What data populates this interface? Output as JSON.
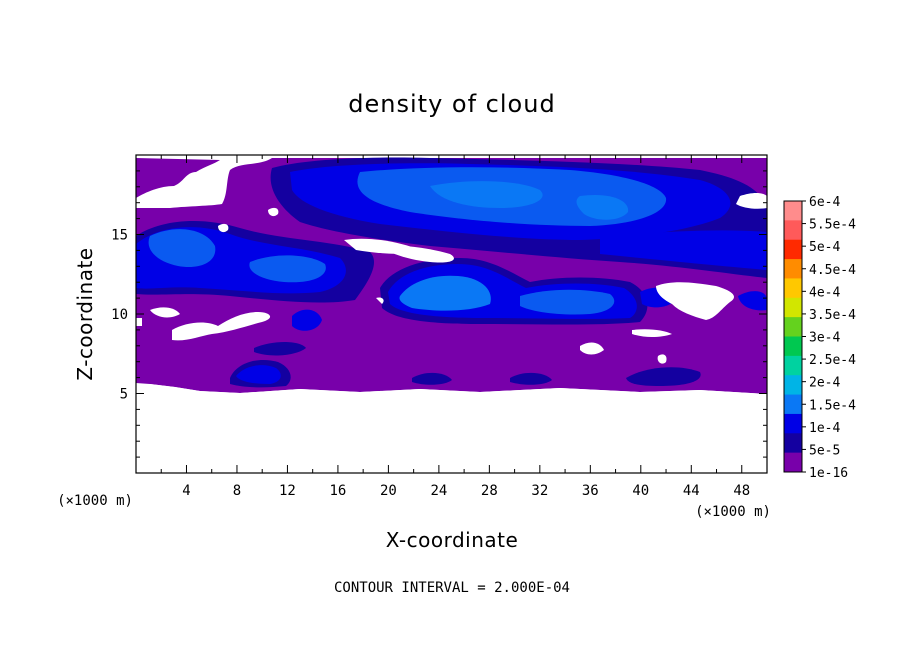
{
  "chart_data": {
    "type": "heatmap",
    "title": "density of cloud",
    "xlabel": "X-coordinate",
    "ylabel": "Z-coordinate",
    "x_unit": "(×1000 m)",
    "y_unit": "(×1000 m)",
    "xlim": [
      0,
      50
    ],
    "ylim": [
      0,
      20
    ],
    "x_ticks": [
      4,
      8,
      12,
      16,
      20,
      24,
      28,
      32,
      36,
      40,
      44,
      48
    ],
    "y_ticks": [
      5,
      10,
      15
    ],
    "annotation": "CONTOUR INTERVAL = 2.000E-04",
    "legend_placement": "right",
    "colorbar": {
      "labels": [
        "6e-4",
        "5.5e-4",
        "5e-4",
        "4.5e-4",
        "4e-4",
        "3.5e-4",
        "3e-4",
        "2.5e-4",
        "2e-4",
        "1.5e-4",
        "1e-4",
        "5e-5",
        "1e-16"
      ],
      "colors": [
        "#ff8c8c",
        "#ff5a5a",
        "#ff2a00",
        "#ff8c00",
        "#ffc800",
        "#d2e600",
        "#64d21e",
        "#00c850",
        "#00d2a0",
        "#00b4e6",
        "#0a78f5",
        "#0000e6",
        "#1400a0",
        "#7800aa"
      ]
    },
    "field_regions": [
      {
        "level": "1e-16",
        "desc": "cloud envelope",
        "x": [
          0,
          50
        ],
        "z": [
          5.3,
          19.6
        ]
      },
      {
        "level": "5e-5",
        "desc": "upper band",
        "x": [
          9,
          50
        ],
        "z": [
          12.3,
          19.4
        ]
      },
      {
        "level": "1e-4",
        "desc": "upper cloud core",
        "x": [
          22,
          42
        ],
        "z": [
          15.5,
          18.5
        ]
      },
      {
        "level": "5e-5",
        "desc": "left mid cloud",
        "x": [
          0,
          19
        ],
        "z": [
          11,
          16.2
        ]
      },
      {
        "level": "1e-4",
        "desc": "left mid core",
        "x": [
          2,
          7
        ],
        "z": [
          13.5,
          15.4
        ]
      },
      {
        "level": "5e-5",
        "desc": "central cloud",
        "x": [
          16,
          39
        ],
        "z": [
          9.7,
          13.5
        ]
      },
      {
        "level": "1e-4",
        "desc": "central core",
        "x": [
          21,
          26
        ],
        "z": [
          10.5,
          12.5
        ]
      },
      {
        "level": "1e-4",
        "desc": "central core 2",
        "x": [
          29,
          37
        ],
        "z": [
          10.3,
          12
        ]
      },
      {
        "level": "5e-5",
        "desc": "low cloud",
        "x": [
          7,
          11
        ],
        "z": [
          5.6,
          7
        ]
      }
    ]
  }
}
